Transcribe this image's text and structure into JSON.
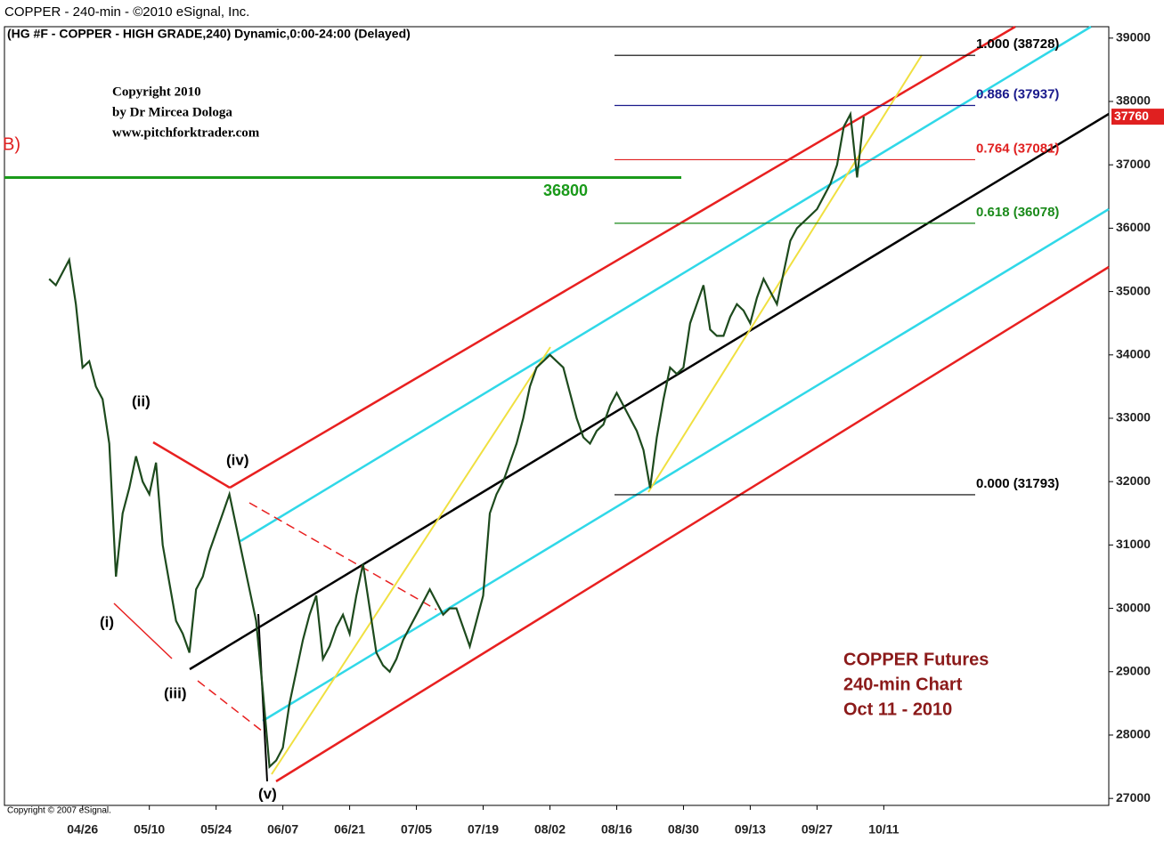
{
  "chart_data": {
    "type": "line",
    "title": "COPPER - 240-min - ©2010 eSignal, Inc.",
    "subtitle": "(HG #F - COPPER - HIGH GRADE,240) Dynamic,0:00-24:00 (Delayed)",
    "copyright_lines": [
      "Copyright 2010",
      "by Dr Mircea Dologa",
      "www.pitchforktrader.com"
    ],
    "footer": "Copyright © 2007 eSignal.",
    "side_label": "B)",
    "chart_note": [
      "COPPER Futures",
      "240-min Chart",
      "Oct 11 - 2010"
    ],
    "wave_labels": [
      "(i)",
      "(ii)",
      "(iii)",
      "(iv)",
      "(v)"
    ],
    "series": [
      {
        "name": "COPPER",
        "color": "#1d4a1d",
        "values": [
          35200,
          35100,
          35300,
          35500,
          34800,
          33800,
          33900,
          33500,
          33300,
          32600,
          30500,
          31500,
          31900,
          32400,
          32000,
          31800,
          32300,
          31000,
          30400,
          29800,
          29600,
          29300,
          30300,
          30500,
          30900,
          31200,
          31500,
          31800,
          31300,
          30800,
          30300,
          29800,
          28700,
          27500,
          27600,
          27800,
          28500,
          29000,
          29500,
          29900,
          30200,
          29200,
          29400,
          29700,
          29900,
          29600,
          30200,
          30700,
          30000,
          29300,
          29100,
          29000,
          29200,
          29500,
          29700,
          29900,
          30100,
          30300,
          30100,
          29900,
          30000,
          30000,
          29700,
          29400,
          29800,
          30200,
          31500,
          31800,
          32000,
          32300,
          32600,
          33000,
          33500,
          33800,
          33900,
          34000,
          33900,
          33800,
          33400,
          33000,
          32700,
          32600,
          32800,
          32900,
          33200,
          33400,
          33200,
          33000,
          32800,
          32500,
          31900,
          32700,
          33300,
          33800,
          33700,
          33800,
          34500,
          34800,
          35100,
          34400,
          34300,
          34300,
          34600,
          34800,
          34700,
          34500,
          34900,
          35200,
          35000,
          34800,
          35300,
          35800,
          36000,
          36100,
          36200,
          36300,
          36500,
          36700,
          37000,
          37600,
          37800,
          36800,
          37760
        ]
      }
    ],
    "last_price": 37760,
    "level_line": {
      "label": "36800",
      "value": 36800,
      "color": "#1a9a1a"
    },
    "fib_levels": [
      {
        "label": "1.000 (38728)",
        "value": 38728,
        "color": "#000000"
      },
      {
        "label": "0.886 (37937)",
        "value": 37937,
        "color": "#1a1a8c"
      },
      {
        "label": "0.764 (37081)",
        "value": 37081,
        "color": "#e02020"
      },
      {
        "label": "0.618 (36078)",
        "value": 36078,
        "color": "#1a8a1a"
      },
      {
        "label": "0.000 (31793)",
        "value": 31793,
        "color": "#000000"
      }
    ],
    "xlim": [
      -6.7,
      158.7
    ],
    "xticks": [
      {
        "value": 5,
        "label": "04/26"
      },
      {
        "value": 15,
        "label": "05/10"
      },
      {
        "value": 25,
        "label": "05/24"
      },
      {
        "value": 35,
        "label": "06/07"
      },
      {
        "value": 45,
        "label": "06/21"
      },
      {
        "value": 55,
        "label": "07/05"
      },
      {
        "value": 65,
        "label": "07/19"
      },
      {
        "value": 75,
        "label": "08/02"
      },
      {
        "value": 85,
        "label": "08/16"
      },
      {
        "value": 95,
        "label": "08/30"
      },
      {
        "value": 105,
        "label": "09/13"
      },
      {
        "value": 115,
        "label": "09/27"
      },
      {
        "value": 125,
        "label": "10/11"
      }
    ],
    "ylim": [
      26890,
      39180
    ],
    "yticks": [
      27000,
      28000,
      29000,
      30000,
      31000,
      32000,
      33000,
      34000,
      35000,
      36000,
      37000,
      38000,
      39000
    ]
  }
}
